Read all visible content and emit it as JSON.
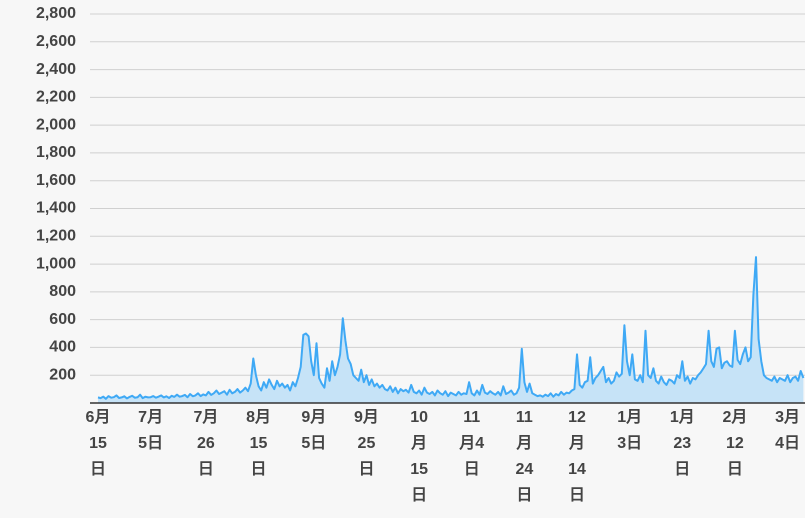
{
  "chart_data": {
    "type": "area",
    "categories": [
      "6月15日",
      null,
      null,
      null,
      null,
      null,
      null,
      null,
      null,
      null,
      null,
      null,
      null,
      null,
      null,
      null,
      null,
      null,
      null,
      null,
      "7月5日",
      null,
      null,
      null,
      null,
      null,
      null,
      null,
      null,
      null,
      null,
      null,
      null,
      null,
      null,
      null,
      null,
      null,
      null,
      null,
      null,
      "7月26日",
      null,
      null,
      null,
      null,
      null,
      null,
      null,
      null,
      null,
      null,
      null,
      null,
      null,
      null,
      null,
      null,
      null,
      null,
      null,
      "8月15日",
      null,
      null,
      null,
      null,
      null,
      null,
      null,
      null,
      null,
      null,
      null,
      null,
      null,
      null,
      null,
      null,
      null,
      null,
      null,
      null,
      "9月5日",
      null,
      null,
      null,
      null,
      null,
      null,
      null,
      null,
      null,
      null,
      null,
      null,
      null,
      null,
      null,
      null,
      null,
      null,
      null,
      "9月25日",
      null,
      null,
      null,
      null,
      null,
      null,
      null,
      null,
      null,
      null,
      null,
      null,
      null,
      null,
      null,
      null,
      null,
      null,
      null,
      "10月15日",
      null,
      null,
      null,
      null,
      null,
      null,
      null,
      null,
      null,
      null,
      null,
      null,
      null,
      null,
      null,
      null,
      null,
      null,
      null,
      "11月4日",
      null,
      null,
      null,
      null,
      null,
      null,
      null,
      null,
      null,
      null,
      null,
      null,
      null,
      null,
      null,
      null,
      null,
      null,
      null,
      "11月24日",
      null,
      null,
      null,
      null,
      null,
      null,
      null,
      null,
      null,
      null,
      null,
      null,
      null,
      null,
      null,
      null,
      null,
      null,
      null,
      "12月14日",
      null,
      null,
      null,
      null,
      null,
      null,
      null,
      null,
      null,
      null,
      null,
      null,
      null,
      null,
      null,
      null,
      null,
      null,
      null,
      "1月3日",
      null,
      null,
      null,
      null,
      null,
      null,
      null,
      null,
      null,
      null,
      null,
      null,
      null,
      null,
      null,
      null,
      null,
      null,
      null,
      "1月23日",
      null,
      null,
      null,
      null,
      null,
      null,
      null,
      null,
      null,
      null,
      null,
      null,
      null,
      null,
      null,
      null,
      null,
      null,
      null,
      "2月12日",
      null,
      null,
      null,
      null,
      null,
      null,
      null,
      null,
      null,
      null,
      null,
      null,
      null,
      null,
      null,
      null,
      null,
      null,
      null,
      "3月4日",
      null,
      null,
      null,
      null,
      null,
      null
    ],
    "values": [
      40,
      35,
      45,
      30,
      50,
      38,
      42,
      55,
      36,
      40,
      48,
      33,
      44,
      52,
      38,
      41,
      60,
      35,
      45,
      40,
      42,
      50,
      38,
      45,
      55,
      40,
      48,
      36,
      52,
      44,
      60,
      45,
      50,
      58,
      42,
      65,
      48,
      55,
      70,
      50,
      62,
      55,
      80,
      58,
      70,
      90,
      65,
      75,
      85,
      60,
      95,
      70,
      80,
      100,
      75,
      90,
      110,
      85,
      140,
      320,
      200,
      120,
      90,
      150,
      110,
      170,
      130,
      100,
      160,
      120,
      140,
      110,
      130,
      90,
      150,
      120,
      180,
      260,
      490,
      500,
      480,
      300,
      200,
      430,
      180,
      140,
      110,
      250,
      160,
      300,
      200,
      260,
      350,
      610,
      450,
      320,
      280,
      200,
      180,
      160,
      240,
      150,
      200,
      130,
      170,
      120,
      140,
      110,
      130,
      100,
      90,
      120,
      80,
      110,
      70,
      100,
      85,
      95,
      75,
      130,
      80,
      70,
      90,
      60,
      110,
      75,
      65,
      80,
      55,
      90,
      70,
      60,
      85,
      50,
      75,
      65,
      55,
      80,
      60,
      70,
      65,
      150,
      70,
      55,
      90,
      60,
      130,
      75,
      65,
      85,
      70,
      60,
      80,
      55,
      120,
      65,
      75,
      90,
      60,
      70,
      110,
      390,
      150,
      80,
      140,
      70,
      60,
      50,
      55,
      45,
      60,
      50,
      70,
      45,
      65,
      55,
      80,
      60,
      75,
      70,
      90,
      100,
      350,
      130,
      110,
      150,
      160,
      330,
      140,
      180,
      200,
      230,
      260,
      150,
      180,
      140,
      160,
      220,
      190,
      210,
      560,
      300,
      200,
      350,
      170,
      160,
      200,
      150,
      520,
      200,
      180,
      250,
      160,
      140,
      190,
      150,
      130,
      170,
      160,
      140,
      200,
      180,
      300,
      160,
      190,
      140,
      180,
      170,
      200,
      220,
      250,
      280,
      520,
      300,
      260,
      390,
      400,
      250,
      290,
      300,
      270,
      260,
      520,
      310,
      280,
      350,
      400,
      300,
      330,
      780,
      1050,
      460,
      300,
      200,
      180,
      170,
      160,
      190,
      150,
      180,
      170,
      160,
      200,
      150,
      180,
      190,
      160,
      230,
      180
    ],
    "color": "#3fa9f5",
    "fill_color": "#c6e3f7",
    "ylim": [
      0,
      2800
    ],
    "yticks": [
      200,
      400,
      600,
      800,
      {
        "value": 1000,
        "label": "1,000"
      },
      {
        "value": 1200,
        "label": "1,200"
      },
      {
        "value": 1400,
        "label": "1,400"
      },
      {
        "value": 1600,
        "label": "1,600"
      },
      {
        "value": 1800,
        "label": "1,800"
      },
      {
        "value": 2000,
        "label": "2,000"
      },
      {
        "value": 2200,
        "label": "2,200"
      },
      {
        "value": 2400,
        "label": "2,400"
      },
      {
        "value": 2600,
        "label": "2,600"
      },
      {
        "value": 2800,
        "label": "2,800"
      }
    ],
    "grid": true
  }
}
